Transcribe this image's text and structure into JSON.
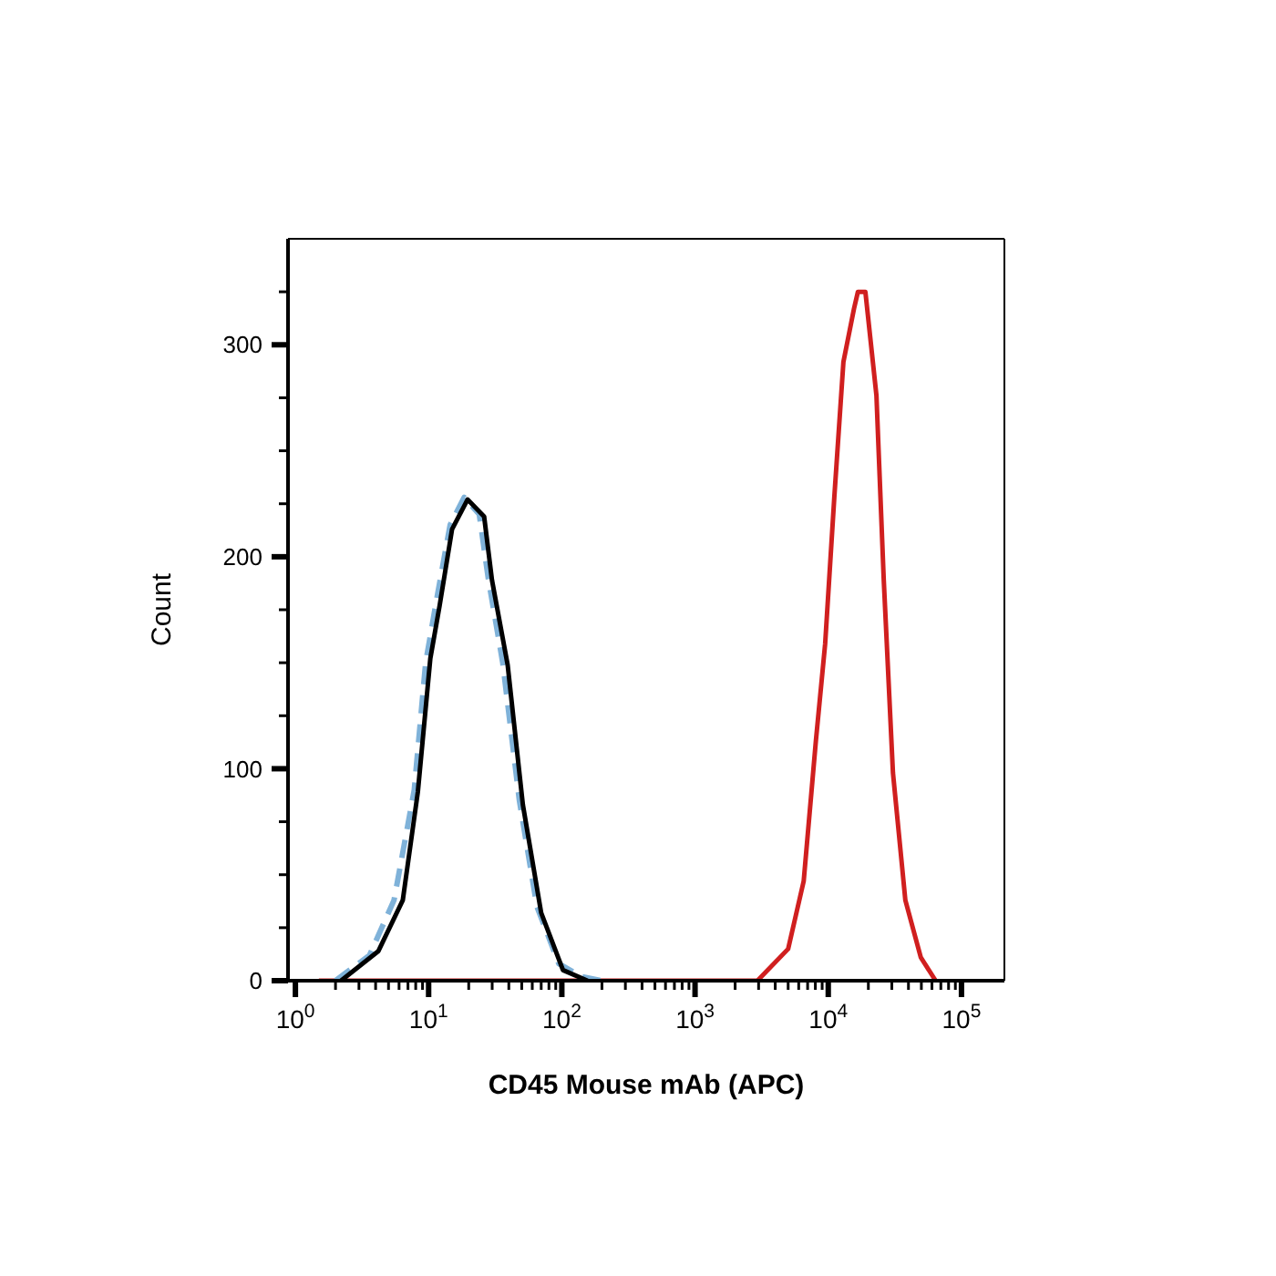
{
  "chart_data": {
    "type": "line",
    "xlabel": "CD45 Mouse mAb (APC)",
    "ylabel": "Count",
    "log": "x",
    "legend": false,
    "marker": "none",
    "xlim": [
      0.88,
      210000
    ],
    "xticks": [
      {
        "value": 1,
        "label": "10$^{0}$"
      },
      {
        "value": 2,
        "label": null
      },
      {
        "value": 3,
        "label": null
      },
      {
        "value": 4,
        "label": null
      },
      {
        "value": 5,
        "label": null
      },
      {
        "value": 6,
        "label": null
      },
      {
        "value": 7,
        "label": null
      },
      {
        "value": 8,
        "label": null
      },
      {
        "value": 9,
        "label": null
      },
      {
        "value": 10,
        "label": "10$^{1}$"
      },
      {
        "value": 20,
        "label": null
      },
      {
        "value": 30,
        "label": null
      },
      {
        "value": 40,
        "label": null
      },
      {
        "value": 50,
        "label": null
      },
      {
        "value": 60,
        "label": null
      },
      {
        "value": 70,
        "label": null
      },
      {
        "value": 80,
        "label": null
      },
      {
        "value": 90,
        "label": null
      },
      {
        "value": 100,
        "label": "10$^{2}$"
      },
      {
        "value": 200,
        "label": null
      },
      {
        "value": 300,
        "label": null
      },
      {
        "value": 400,
        "label": null
      },
      {
        "value": 500,
        "label": null
      },
      {
        "value": 600,
        "label": null
      },
      {
        "value": 700,
        "label": null
      },
      {
        "value": 800,
        "label": null
      },
      {
        "value": 900,
        "label": null
      },
      {
        "value": 1000,
        "label": "10$^{3}$"
      },
      {
        "value": 2000,
        "label": null
      },
      {
        "value": 3000,
        "label": null
      },
      {
        "value": 4000,
        "label": null
      },
      {
        "value": 5000,
        "label": null
      },
      {
        "value": 6000,
        "label": null
      },
      {
        "value": 7000,
        "label": null
      },
      {
        "value": 8000,
        "label": null
      },
      {
        "value": 9000,
        "label": null
      },
      {
        "value": 10000,
        "label": "10$^{4}$"
      },
      {
        "value": 20000,
        "label": null
      },
      {
        "value": 30000,
        "label": null
      },
      {
        "value": 40000,
        "label": null
      },
      {
        "value": 50000,
        "label": null
      },
      {
        "value": 60000,
        "label": null
      },
      {
        "value": 70000,
        "label": null
      },
      {
        "value": 80000,
        "label": null
      },
      {
        "value": 90000,
        "label": null
      },
      {
        "value": 100000,
        "label": "10$^{5}$"
      }
    ],
    "ylim": [
      0,
      350
    ],
    "yticks": [
      0,
      {
        "value": 25,
        "label": null
      },
      {
        "value": 50,
        "label": null
      },
      {
        "value": 75,
        "label": null
      },
      100,
      {
        "value": 125,
        "label": null
      },
      {
        "value": 150,
        "label": null
      },
      {
        "value": 175,
        "label": null
      },
      200,
      {
        "value": 225,
        "label": null
      },
      {
        "value": 250,
        "label": null
      },
      {
        "value": 275,
        "label": null
      },
      300,
      {
        "value": 325,
        "label": null
      }
    ],
    "series": [
      {
        "color": "#d01f1f",
        "line_style": "solid",
        "x": [
          1.5,
          2940,
          5000,
          6540,
          8070,
          9480,
          11100,
          13000,
          15600,
          16700,
          19000,
          23000,
          26100,
          30600,
          37900,
          49500,
          64000
        ],
        "values": [
          0,
          0,
          15,
          47,
          113,
          159,
          228,
          292,
          317,
          325,
          325,
          276,
          189,
          98,
          38,
          11,
          0
        ]
      },
      {
        "color": "#7fb2d9",
        "line_style": "dashed",
        "x": [
          2.0,
          3.6,
          5.5,
          7.8,
          9.5,
          11.5,
          14.5,
          18.5,
          24,
          28,
          36,
          48,
          65,
          95,
          140,
          200
        ],
        "values": [
          0,
          12,
          38,
          90,
          150,
          180,
          215,
          228,
          220,
          190,
          150,
          85,
          35,
          8,
          2,
          0
        ]
      },
      {
        "color": "#000000",
        "line_style": "solid",
        "x": [
          2.2,
          4.2,
          6.4,
          8.3,
          10.3,
          12.1,
          15.0,
          19.6,
          26.1,
          29.9,
          39.2,
          51,
          70,
          102,
          156
        ],
        "values": [
          0,
          14,
          38,
          89,
          152,
          177,
          213,
          227,
          219,
          189,
          149,
          83,
          32,
          5,
          0
        ]
      }
    ]
  }
}
